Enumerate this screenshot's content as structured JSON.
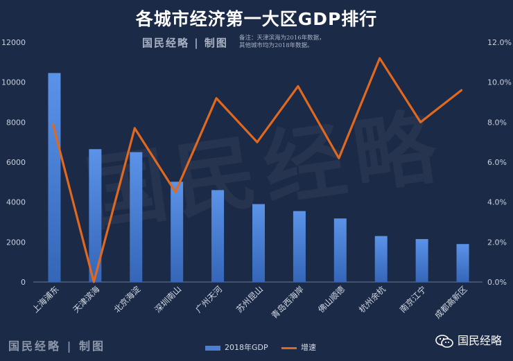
{
  "chart_data": {
    "type": "bar+line",
    "title": "各城市经济第一大区GDP排行",
    "categories": [
      "上海浦东",
      "天津滨海",
      "北京海淀",
      "深圳南山",
      "广州天河",
      "苏州昆山",
      "青岛西海岸",
      "佛山顺德",
      "杭州余杭",
      "南京江宁",
      "成都高新区"
    ],
    "series": [
      {
        "name": "2018年GDP",
        "type": "bar",
        "axis": "left",
        "color": "#4a7fd4",
        "values": [
          10460,
          6650,
          6500,
          5020,
          4600,
          3900,
          3550,
          3180,
          2300,
          2150,
          1900
        ]
      },
      {
        "name": "增速",
        "type": "line",
        "axis": "right",
        "color": "#e0691f",
        "values": [
          7.9,
          0.0,
          7.7,
          4.5,
          9.2,
          7.0,
          9.8,
          6.2,
          11.2,
          8.0,
          9.6
        ]
      }
    ],
    "y_left": {
      "min": 0,
      "max": 12000,
      "ticks": [
        "0",
        "2000",
        "4000",
        "6000",
        "8000",
        "10000",
        "12000"
      ]
    },
    "y_right": {
      "min": 0,
      "max": 12,
      "ticks": [
        "0.0%",
        "2.0%",
        "4.0%",
        "6.0%",
        "8.0%",
        "10.0%",
        "12.0%"
      ]
    },
    "legend_position": "bottom",
    "grid": false
  },
  "branding": {
    "stamp_top": "国民经略 | 制图",
    "stamp_bottom": "国民经略 | 制图",
    "watermark": "国民经略",
    "logo_text": "国民经略",
    "logo_icon": "wechat-icon"
  },
  "note_lines": [
    "备注：天津滨海为2016年数据，",
    "其他城市均为2018年数据。"
  ]
}
